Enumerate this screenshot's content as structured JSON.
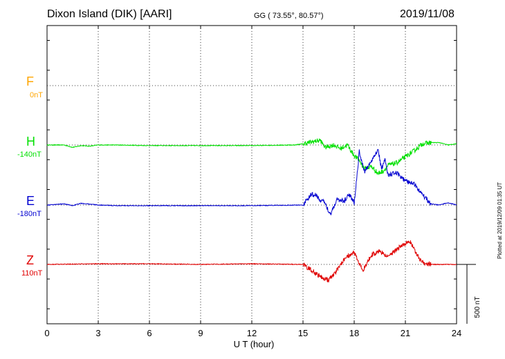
{
  "header": {
    "title": "Dixon Island (DIK)  [AARI]",
    "coords": "GG ( 73.55°,  80.57°)",
    "date": "2019/11/08"
  },
  "components": [
    {
      "name": "F",
      "baseline": "0nT",
      "color": "#ffa500"
    },
    {
      "name": "H",
      "baseline": "-140nT",
      "color": "#00e000"
    },
    {
      "name": "E",
      "baseline": "-180nT",
      "color": "#0000d0"
    },
    {
      "name": "Z",
      "baseline": "110nT",
      "color": "#e00000"
    }
  ],
  "scale_label": "500 nT",
  "plotted_note": "Plotted at 2019/12/09 01:35 UT",
  "chart_data": {
    "type": "line",
    "xlabel": "U T (hour)",
    "xlim": [
      0,
      24
    ],
    "xticks": [
      "0",
      "3",
      "6",
      "9",
      "12",
      "15",
      "18",
      "21",
      "24"
    ],
    "grid": true,
    "y_unit": "nT",
    "series": [
      {
        "name": "H",
        "color": "#00e000",
        "x": [
          0,
          1,
          1.5,
          2,
          2.5,
          3,
          4,
          6,
          9,
          12,
          14.5,
          15,
          15.5,
          16,
          16.3,
          16.8,
          17.2,
          17.6,
          18,
          18.3,
          18.6,
          19,
          19.4,
          19.7,
          20,
          20.5,
          21,
          21.5,
          22,
          22.5,
          23,
          23.5,
          24
        ],
        "y": [
          0,
          0,
          -20,
          -5,
          -10,
          0,
          0,
          -5,
          -5,
          -5,
          0,
          10,
          25,
          40,
          -20,
          0,
          -30,
          0,
          -90,
          -130,
          -200,
          -180,
          -240,
          -220,
          -170,
          -150,
          -100,
          -50,
          10,
          20,
          20,
          0,
          10
        ]
      },
      {
        "name": "E",
        "color": "#0000d0",
        "x": [
          0,
          1,
          1.5,
          2,
          2.7,
          3,
          4,
          6,
          9,
          12,
          15,
          15.5,
          15.8,
          16,
          16.3,
          16.6,
          17,
          17.4,
          17.7,
          18,
          18.1,
          18.3,
          18.6,
          19,
          19.4,
          19.6,
          19.8,
          20,
          20.5,
          21,
          21.5,
          22,
          22.5,
          23,
          23.5,
          24
        ],
        "y": [
          0,
          10,
          -5,
          15,
          5,
          0,
          -5,
          -5,
          -5,
          -5,
          0,
          90,
          80,
          40,
          20,
          -80,
          50,
          30,
          90,
          20,
          150,
          450,
          280,
          370,
          470,
          300,
          380,
          250,
          270,
          200,
          180,
          90,
          10,
          0,
          20,
          0
        ]
      },
      {
        "name": "Z",
        "color": "#e00000",
        "x": [
          0,
          3,
          6,
          9,
          12,
          15,
          15.5,
          16,
          16.5,
          17,
          17.5,
          18,
          18.2,
          18.5,
          19,
          19.5,
          20,
          20.5,
          21,
          21.3,
          21.8,
          22.2,
          23,
          24
        ],
        "y": [
          0,
          5,
          5,
          0,
          5,
          0,
          -50,
          -100,
          -130,
          -50,
          60,
          100,
          30,
          -50,
          80,
          110,
          60,
          130,
          180,
          190,
          50,
          0,
          0,
          0
        ]
      }
    ]
  }
}
